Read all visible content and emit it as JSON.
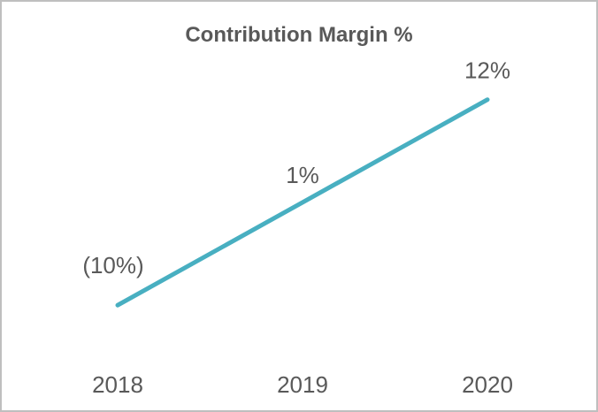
{
  "chart_data": {
    "type": "line",
    "title": "Contribution Margin %",
    "categories": [
      "2018",
      "2019",
      "2020"
    ],
    "series": [
      {
        "name": "Contribution Margin %",
        "values": [
          -10,
          1,
          12
        ],
        "data_labels": [
          "(10%)",
          "1%",
          "12%"
        ],
        "color": "#48AFC1"
      }
    ],
    "xlabel": "",
    "ylabel": "",
    "ylim": [
      -15,
      15
    ],
    "grid": false,
    "legend": "none",
    "axes": "hidden",
    "data_label_position": "above",
    "negative_number_format": "parentheses",
    "text_color": "#595959",
    "border_color": "#BFBFBF",
    "background_color": "#FFFFFF"
  }
}
